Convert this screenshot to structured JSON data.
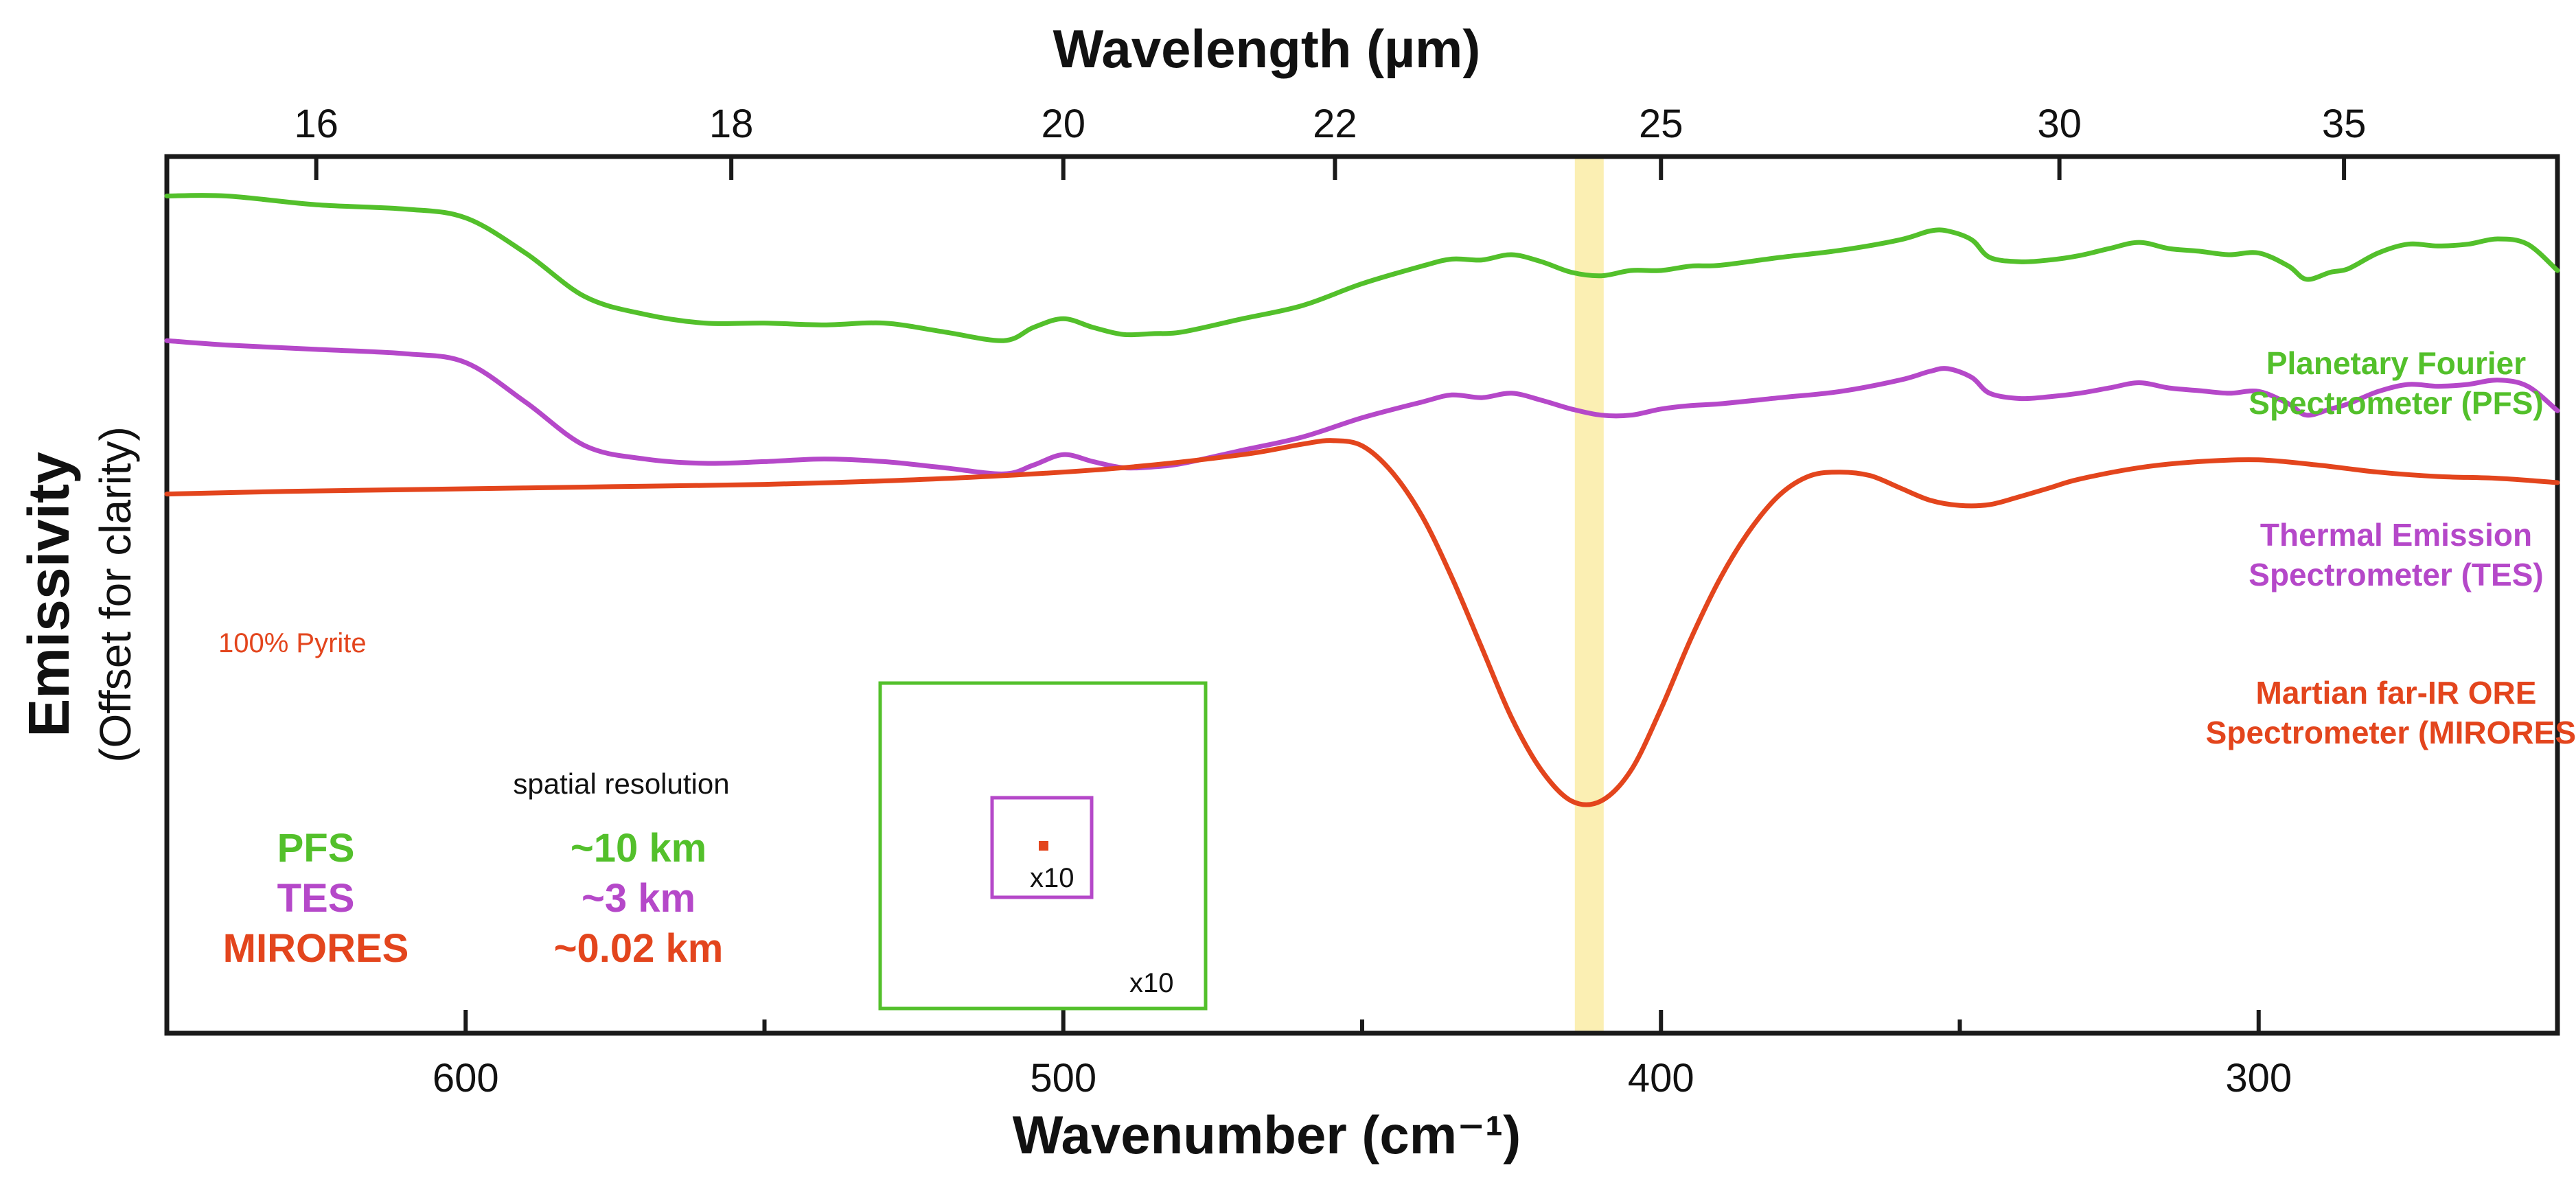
{
  "chart_data": {
    "type": "line",
    "top_axis": {
      "label": "Wavelength (µm)",
      "ticks": [
        "16",
        "18",
        "20",
        "22",
        "25",
        "30",
        "35"
      ]
    },
    "bottom_axis": {
      "label": "Wavenumber (cm⁻¹)",
      "xlim": [
        650,
        250
      ],
      "ticks": [
        600,
        500,
        400,
        300
      ]
    },
    "y_axis": {
      "label": "Emissivity",
      "sublabel": "(Offset for clarity)",
      "ticks": []
    },
    "highlight_band": {
      "center_wavenumber": 412,
      "color": "#fbefb3"
    },
    "series": [
      {
        "name": "Planetary Fourier Spectrometer (PFS)",
        "label_lines": [
          "Planetary Fourier",
          "Spectrometer (PFS)"
        ],
        "color": "#53c02b",
        "x": [
          650,
          640,
          625,
          610,
          600,
          590,
          580,
          570,
          560,
          550,
          540,
          530,
          520,
          510,
          505,
          500,
          495,
          490,
          485,
          480,
          470,
          460,
          450,
          440,
          435,
          430,
          425,
          420,
          415,
          410,
          405,
          400,
          395,
          390,
          380,
          370,
          360,
          355,
          352,
          348,
          345,
          340,
          335,
          330,
          325,
          320,
          315,
          310,
          305,
          300,
          295,
          292,
          288,
          285,
          280,
          275,
          270,
          265,
          260,
          255,
          250
        ],
        "y": [
          0.955,
          0.955,
          0.945,
          0.94,
          0.93,
          0.89,
          0.84,
          0.82,
          0.81,
          0.81,
          0.808,
          0.81,
          0.8,
          0.79,
          0.805,
          0.815,
          0.805,
          0.797,
          0.798,
          0.8,
          0.815,
          0.83,
          0.855,
          0.875,
          0.883,
          0.882,
          0.888,
          0.88,
          0.868,
          0.864,
          0.87,
          0.87,
          0.875,
          0.876,
          0.885,
          0.893,
          0.905,
          0.915,
          0.915,
          0.905,
          0.885,
          0.88,
          0.882,
          0.887,
          0.895,
          0.902,
          0.895,
          0.892,
          0.888,
          0.89,
          0.875,
          0.86,
          0.868,
          0.872,
          0.89,
          0.9,
          0.898,
          0.9,
          0.906,
          0.9,
          0.87
        ]
      },
      {
        "name": "Thermal Emission Spectrometer (TES)",
        "label_lines": [
          "Thermal Emission",
          "Spectrometer (TES)"
        ],
        "color": "#b548c9",
        "x": [
          650,
          640,
          625,
          610,
          600,
          590,
          580,
          570,
          560,
          550,
          540,
          530,
          520,
          510,
          505,
          500,
          495,
          490,
          485,
          480,
          470,
          460,
          450,
          440,
          435,
          430,
          425,
          420,
          415,
          410,
          405,
          400,
          395,
          390,
          380,
          370,
          360,
          355,
          352,
          348,
          345,
          340,
          335,
          330,
          325,
          320,
          315,
          310,
          305,
          300,
          295,
          292,
          288,
          285,
          280,
          275,
          270,
          265,
          260,
          255,
          250
        ],
        "y": [
          0.79,
          0.785,
          0.78,
          0.775,
          0.765,
          0.72,
          0.67,
          0.655,
          0.65,
          0.652,
          0.655,
          0.652,
          0.645,
          0.638,
          0.648,
          0.66,
          0.652,
          0.645,
          0.646,
          0.65,
          0.665,
          0.68,
          0.702,
          0.72,
          0.728,
          0.725,
          0.73,
          0.722,
          0.712,
          0.705,
          0.705,
          0.712,
          0.716,
          0.718,
          0.725,
          0.732,
          0.745,
          0.755,
          0.758,
          0.748,
          0.73,
          0.724,
          0.726,
          0.73,
          0.736,
          0.742,
          0.736,
          0.733,
          0.73,
          0.732,
          0.718,
          0.705,
          0.712,
          0.718,
          0.732,
          0.74,
          0.738,
          0.74,
          0.745,
          0.738,
          0.71
        ]
      },
      {
        "name": "Martian far-IR ORE Spectrometer (MIRORES)",
        "label_lines": [
          "Martian far-IR ORE",
          "Spectrometer (MIRORES)"
        ],
        "color": "#e3451d",
        "annotation": "100% Pyrite",
        "x": [
          650,
          630,
          610,
          590,
          570,
          550,
          530,
          510,
          490,
          470,
          460,
          455,
          450,
          445,
          440,
          435,
          430,
          425,
          420,
          415,
          410,
          405,
          400,
          395,
          390,
          385,
          380,
          375,
          370,
          365,
          360,
          355,
          350,
          345,
          340,
          335,
          330,
          320,
          310,
          300,
          290,
          280,
          270,
          260,
          250
        ],
        "y": [
          0.615,
          0.618,
          0.62,
          0.622,
          0.624,
          0.626,
          0.63,
          0.636,
          0.645,
          0.66,
          0.672,
          0.676,
          0.67,
          0.64,
          0.59,
          0.52,
          0.44,
          0.36,
          0.3,
          0.265,
          0.265,
          0.3,
          0.37,
          0.45,
          0.52,
          0.575,
          0.615,
          0.636,
          0.64,
          0.636,
          0.622,
          0.608,
          0.602,
          0.603,
          0.612,
          0.622,
          0.632,
          0.645,
          0.652,
          0.654,
          0.648,
          0.64,
          0.635,
          0.633,
          0.628
        ]
      }
    ],
    "legend": {
      "title": "spatial resolution",
      "rows": [
        {
          "name": "PFS",
          "resolution": "~10 km",
          "color": "#53c02b"
        },
        {
          "name": "TES",
          "resolution": "~3 km",
          "color": "#b548c9"
        },
        {
          "name": "MIRORES",
          "resolution": "~0.02 km",
          "color": "#e3451d"
        }
      ]
    },
    "inset": {
      "outer_scale_label": "x10",
      "inner_scale_label": "x10"
    }
  }
}
